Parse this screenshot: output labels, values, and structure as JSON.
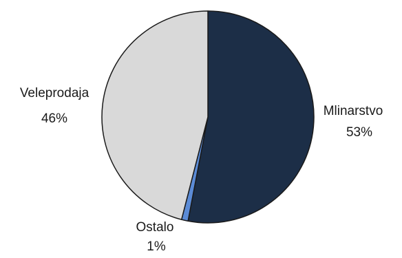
{
  "chart_data": {
    "type": "pie",
    "title": "",
    "slices": [
      {
        "label": "Mlinarstvo",
        "value": 53,
        "value_label": "53%",
        "color": "#1c2e47"
      },
      {
        "label": "Ostalo",
        "value": 1,
        "value_label": "1%",
        "color": "#5b8bd6"
      },
      {
        "label": "Veleprodaja",
        "value": 46,
        "value_label": "46%",
        "color": "#d9d9d9"
      }
    ],
    "start_angle_deg": 0,
    "direction": "clockwise",
    "labels_outside": true,
    "legend": "none"
  }
}
